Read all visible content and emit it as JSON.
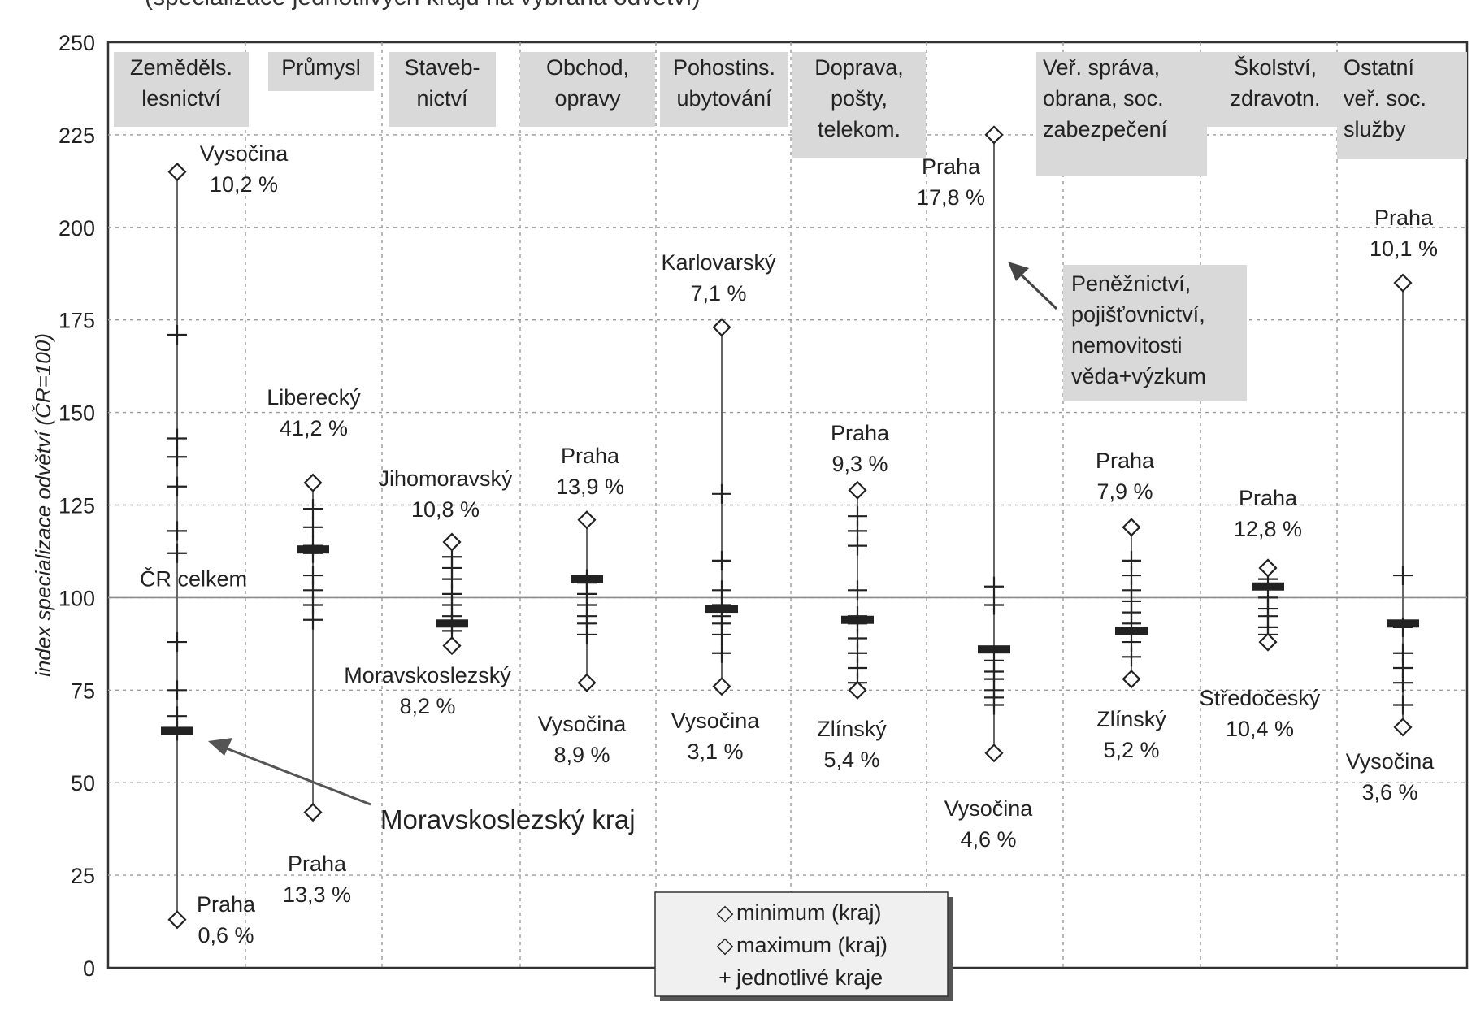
{
  "top_text": "(specializace jednotlivých krajů na vybraná odvětví)",
  "chart_data": {
    "type": "scatter",
    "ylabel": "index specializace odvětví (ČR=100)",
    "ylim": [
      0,
      250
    ],
    "yticks": [
      0,
      25,
      50,
      75,
      100,
      125,
      150,
      175,
      200,
      225,
      250
    ],
    "reference_line": {
      "value": 100,
      "label": "ČR  celkem"
    },
    "grid": true,
    "legend": {
      "placement": "bottom-center",
      "entries": [
        {
          "marker": "◇",
          "label": "minimum (kraj)"
        },
        {
          "marker": "◇",
          "label": "maximum (kraj)"
        },
        {
          "marker": "+",
          "label": "jednotlivé kraje"
        }
      ]
    },
    "categories": [
      {
        "label_lines": [
          "Zeměděls.",
          "lesnictví"
        ],
        "min": {
          "value": 13,
          "label_lines": [
            "Praha",
            "0,6 %"
          ]
        },
        "max": {
          "value": 215,
          "label_lines": [
            "Vysočina",
            "10,2 %"
          ]
        },
        "regions": [
          171,
          143,
          138,
          130,
          118,
          112,
          88,
          75,
          68,
          64
        ],
        "highlight": 64
      },
      {
        "label_lines": [
          "Průmysl"
        ],
        "min": {
          "value": 42,
          "label_lines": [
            "Praha",
            "13,3 %"
          ]
        },
        "max": {
          "value": 131,
          "label_lines": [
            "Liberecký",
            "41,2 %"
          ]
        },
        "regions": [
          124,
          119,
          114,
          112,
          106,
          102,
          98,
          94
        ],
        "highlight": 113
      },
      {
        "label_lines": [
          "Staveb-",
          "nictví"
        ],
        "min": {
          "value": 87,
          "label_lines": [
            "Moravskoslezský",
            "8,2 %"
          ]
        },
        "max": {
          "value": 115,
          "label_lines": [
            "Jihomoravský",
            "10,8 %"
          ]
        },
        "regions": [
          111,
          108,
          105,
          101,
          98,
          95,
          93,
          91
        ],
        "highlight": 93
      },
      {
        "label_lines": [
          "Obchod,",
          "opravy"
        ],
        "min": {
          "value": 77,
          "label_lines": [
            "Vysočina",
            "8,9 %"
          ]
        },
        "max": {
          "value": 121,
          "label_lines": [
            "Praha",
            "13,9 %"
          ]
        },
        "regions": [
          105,
          104,
          101,
          98,
          95,
          93,
          90
        ],
        "highlight": 105
      },
      {
        "label_lines": [
          "Pohostins.",
          "ubytování"
        ],
        "min": {
          "value": 76,
          "label_lines": [
            "Vysočina",
            "3,1 %"
          ]
        },
        "max": {
          "value": 173,
          "label_lines": [
            "Karlovarský",
            "7,1 %"
          ]
        },
        "regions": [
          128,
          110,
          102,
          98,
          95,
          93,
          90,
          85
        ],
        "highlight": 97
      },
      {
        "label_lines": [
          "Doprava,",
          "pošty,",
          "telekom."
        ],
        "min": {
          "value": 75,
          "label_lines": [
            "Zlínský",
            "5,4 %"
          ]
        },
        "max": {
          "value": 129,
          "label_lines": [
            "Praha",
            "9,3 %"
          ]
        },
        "regions": [
          122,
          118,
          114,
          102,
          95,
          93,
          89,
          85,
          81,
          77
        ],
        "highlight": 94
      },
      {
        "label_lines": [],
        "min": {
          "value": 58,
          "label_lines": [
            "Vysočina",
            "4,6 %"
          ]
        },
        "max": {
          "value": 225,
          "label_lines": [
            "Praha",
            "17,8 %"
          ]
        },
        "regions": [
          103,
          98,
          83,
          80,
          78,
          75,
          73,
          71
        ],
        "highlight": 86
      },
      {
        "label_lines": [
          "Veř. správa,",
          "obrana, soc.",
          "zabezpečení"
        ],
        "min": {
          "value": 78,
          "label_lines": [
            "Zlínský",
            "5,2 %"
          ]
        },
        "max": {
          "value": 119,
          "label_lines": [
            "Praha",
            "7,9 %"
          ]
        },
        "regions": [
          110,
          106,
          102,
          99,
          96,
          93,
          88,
          84
        ],
        "highlight": 91
      },
      {
        "label_lines": [
          "Školství,",
          "zdravotn."
        ],
        "min": {
          "value": 88,
          "label_lines": [
            "Středočeský",
            "10,4 %"
          ]
        },
        "max": {
          "value": 108,
          "label_lines": [
            "Praha",
            "12,8 %"
          ]
        },
        "regions": [
          105,
          100,
          97,
          95,
          92,
          90
        ],
        "highlight": 103
      },
      {
        "label_lines": [
          "Ostatní",
          "veř. soc.",
          "služby"
        ],
        "min": {
          "value": 65,
          "label_lines": [
            "Vysočina",
            "3,6 %"
          ]
        },
        "max": {
          "value": 185,
          "label_lines": [
            "Praha",
            "10,1 %"
          ]
        },
        "regions": [
          106,
          92,
          85,
          81,
          77,
          71
        ],
        "highlight": 93
      }
    ],
    "extra_labels": [
      {
        "text_lines": [
          "Peněžnictví,",
          "pojišťovnictví,",
          "nemovitosti",
          "věda+výzkum"
        ],
        "points_to_category": 6
      }
    ],
    "callout": {
      "text": "Moravskoslezský kraj",
      "points_to_category": 0
    }
  }
}
